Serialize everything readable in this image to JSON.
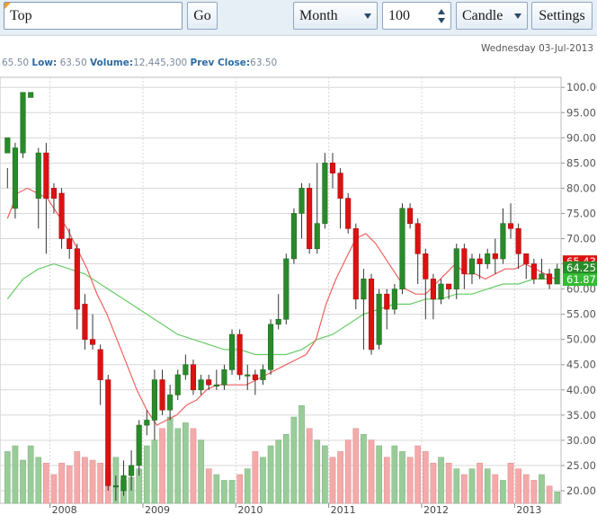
{
  "toolbar": {
    "search_value": "Top",
    "go_label": "Go",
    "period_label": "Month",
    "count_value": "100",
    "chart_type_label": "Candle",
    "settings_label": "Settings"
  },
  "header": {
    "date_text": "Wednesday 03-Jul-2013",
    "info": {
      "high_value": "65.50",
      "low_label": "Low:",
      "low_value": "63.50",
      "volume_label": "Volume:",
      "volume_value": "12,445,300",
      "prev_close_label": "Prev Close:",
      "prev_close_value": "63.50"
    }
  },
  "colors": {
    "up": "#2a8a2a",
    "down": "#dd1111",
    "ma_fast": "#f06060",
    "ma_slow": "#66cc66",
    "vol_up": "#99cc99",
    "vol_down": "#f4aaaa",
    "grid": "#d8d8d8"
  },
  "chart_data": {
    "type": "candlestick",
    "y_ticks": [
      "20.00",
      "25.00",
      "30.00",
      "35.00",
      "40.00",
      "45.00",
      "50.00",
      "55.00",
      "60.00",
      "65.00",
      "70.00",
      "75.00",
      "80.00",
      "85.00",
      "90.00",
      "95.00",
      "100.00"
    ],
    "ylim": [
      17.5,
      102
    ],
    "x_labels": [
      "2008",
      "2009",
      "2010",
      "2011",
      "2012",
      "2013"
    ],
    "value_labels": [
      {
        "text": "65.43",
        "value": 65.43,
        "color": "#dd1111"
      },
      {
        "text": "64.25",
        "value": 64.25,
        "color": "#2a8a2a"
      },
      {
        "text": "61.87",
        "value": 61.87,
        "color": "#33bb33"
      }
    ],
    "candles": [
      [
        87,
        90,
        84,
        80
      ],
      [
        76,
        88,
        89,
        74
      ],
      [
        87,
        99,
        99,
        86
      ],
      [
        98,
        99,
        79,
        79
      ],
      [
        78,
        87,
        88,
        72
      ],
      [
        87,
        78,
        89,
        67
      ],
      [
        80,
        78,
        81,
        75
      ],
      [
        79,
        70,
        80,
        68
      ],
      [
        70,
        68,
        72,
        66
      ],
      [
        68,
        56,
        69,
        52
      ],
      [
        57,
        50,
        59,
        48
      ],
      [
        50,
        49,
        55,
        48
      ],
      [
        48,
        42,
        49,
        37
      ],
      [
        42,
        21,
        43,
        20
      ],
      [
        21,
        21,
        23,
        18
      ],
      [
        20,
        23,
        26,
        19
      ],
      [
        23,
        25,
        28,
        20
      ],
      [
        25,
        33,
        34,
        23
      ],
      [
        33,
        34,
        36,
        31
      ],
      [
        34,
        42,
        44,
        30
      ],
      [
        42,
        36,
        44,
        35
      ],
      [
        36,
        39,
        41,
        34
      ],
      [
        39,
        43,
        44,
        38
      ],
      [
        43,
        45,
        47,
        42
      ],
      [
        45,
        40,
        46,
        39
      ],
      [
        40,
        42,
        43,
        39
      ],
      [
        42,
        41,
        43,
        40
      ],
      [
        41,
        41,
        44,
        40
      ],
      [
        41,
        44,
        45,
        40
      ],
      [
        44,
        51,
        52,
        43
      ],
      [
        51,
        43,
        52,
        42
      ],
      [
        43,
        43,
        45,
        40
      ],
      [
        43,
        42,
        44,
        39
      ],
      [
        42,
        44,
        45,
        41
      ],
      [
        44,
        53,
        54,
        43
      ],
      [
        53,
        54,
        59,
        52
      ],
      [
        54,
        66,
        67,
        53
      ],
      [
        66,
        75,
        76,
        65
      ],
      [
        75,
        80,
        81,
        70
      ],
      [
        80,
        68,
        81,
        67
      ],
      [
        68,
        73,
        85,
        67
      ],
      [
        73,
        85,
        87,
        72
      ],
      [
        85,
        83,
        87,
        80
      ],
      [
        83,
        78,
        84,
        72
      ],
      [
        78,
        72,
        79,
        71
      ],
      [
        72,
        58,
        73,
        56
      ],
      [
        58,
        62,
        64,
        48
      ],
      [
        62,
        48,
        63,
        47
      ],
      [
        49,
        59,
        60,
        48
      ],
      [
        59,
        56,
        60,
        52
      ],
      [
        56,
        60,
        61,
        55
      ],
      [
        60,
        76,
        77,
        59
      ],
      [
        76,
        73,
        77,
        72
      ],
      [
        73,
        67,
        74,
        61
      ],
      [
        67,
        62,
        68,
        54
      ],
      [
        62,
        58,
        63,
        54
      ],
      [
        58,
        61,
        62,
        57
      ],
      [
        61,
        60,
        61,
        58
      ],
      [
        60,
        68,
        69,
        58
      ],
      [
        68,
        63,
        69,
        60
      ],
      [
        63,
        66,
        67,
        61
      ],
      [
        66,
        65,
        67,
        62
      ],
      [
        65,
        67,
        68,
        64
      ],
      [
        67,
        66,
        70,
        63
      ],
      [
        66,
        73,
        76,
        65
      ],
      [
        73,
        72,
        77,
        70
      ],
      [
        72,
        67,
        73,
        64
      ],
      [
        67,
        65,
        66,
        62
      ],
      [
        65,
        62,
        66,
        61
      ],
      [
        62,
        63,
        66,
        62
      ],
      [
        63,
        61,
        64,
        60
      ],
      [
        61,
        64,
        65,
        62
      ]
    ],
    "ma_fast": [
      74,
      79,
      80,
      79,
      78,
      75,
      72,
      68,
      64,
      59,
      55,
      50,
      45,
      40,
      36,
      33,
      34,
      35,
      37,
      38,
      40,
      41,
      41,
      41,
      41,
      42,
      43,
      44,
      45,
      46,
      47,
      50,
      57,
      62,
      66,
      70,
      71,
      69,
      66,
      63,
      60,
      59,
      59,
      61,
      63,
      65,
      63,
      63,
      62,
      63,
      64,
      64,
      65,
      64,
      63,
      62
    ],
    "ma_slow": [
      58,
      62,
      64,
      65,
      64,
      63,
      61,
      59,
      57,
      55,
      53,
      51,
      50,
      49,
      48,
      48,
      47,
      47,
      47,
      48,
      50,
      51,
      53,
      55,
      56,
      57,
      57,
      58,
      58,
      59,
      59,
      60,
      61,
      61,
      62,
      62
    ],
    "volume": [
      18,
      20,
      15,
      20,
      16,
      14,
      10,
      14,
      13,
      18,
      16,
      15,
      14,
      12,
      16,
      8,
      9,
      12,
      20,
      22,
      26,
      30,
      26,
      28,
      26,
      22,
      12,
      10,
      8,
      8,
      10,
      12,
      18,
      16,
      20,
      22,
      24,
      30,
      34,
      26,
      22,
      20,
      16,
      18,
      22,
      26,
      24,
      22,
      20,
      16,
      20,
      18,
      16,
      20,
      18,
      14,
      16,
      14,
      12,
      10,
      12,
      14,
      12,
      10,
      8,
      14,
      12,
      10,
      8,
      10,
      6,
      4
    ]
  }
}
